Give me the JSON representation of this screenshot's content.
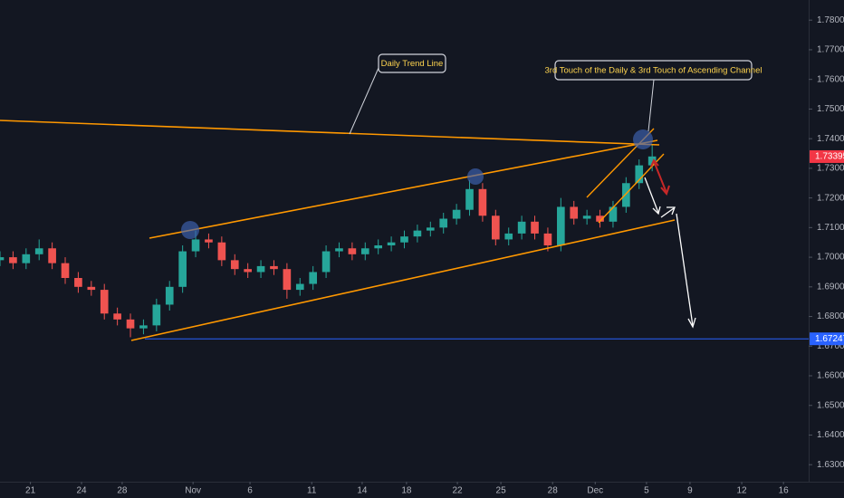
{
  "chart_data": {
    "type": "candlestick",
    "up_color": "#26a69a",
    "down_color": "#ef5350",
    "grid": false,
    "x": [
      0,
      3,
      6,
      9,
      12,
      15,
      18,
      21,
      24,
      27,
      30,
      33,
      36,
      39,
      42,
      45,
      48,
      51,
      54,
      57,
      60,
      63,
      66,
      69,
      72,
      75,
      78,
      81,
      84,
      87,
      90,
      93,
      96,
      99,
      102,
      105,
      108,
      111,
      114,
      117,
      120,
      123,
      126,
      129,
      132,
      135,
      138,
      141,
      144,
      147,
      150
    ],
    "open": [
      1.699,
      1.7,
      1.698,
      1.701,
      1.703,
      1.698,
      1.693,
      1.69,
      1.689,
      1.681,
      1.679,
      1.676,
      1.677,
      1.684,
      1.69,
      1.702,
      1.706,
      1.705,
      1.699,
      1.696,
      1.695,
      1.697,
      1.696,
      1.689,
      1.691,
      1.695,
      1.702,
      1.703,
      1.701,
      1.703,
      1.704,
      1.705,
      1.707,
      1.709,
      1.71,
      1.713,
      1.716,
      1.723,
      1.714,
      1.706,
      1.708,
      1.712,
      1.708,
      1.704,
      1.717,
      1.713,
      1.714,
      1.712,
      1.717,
      1.725,
      1.731
    ],
    "high": [
      1.702,
      1.702,
      1.703,
      1.706,
      1.705,
      1.7,
      1.695,
      1.692,
      1.691,
      1.683,
      1.681,
      1.679,
      1.686,
      1.692,
      1.704,
      1.709,
      1.708,
      1.707,
      1.701,
      1.698,
      1.699,
      1.699,
      1.698,
      1.693,
      1.697,
      1.704,
      1.705,
      1.705,
      1.705,
      1.706,
      1.707,
      1.709,
      1.711,
      1.712,
      1.715,
      1.718,
      1.726,
      1.725,
      1.716,
      1.71,
      1.714,
      1.714,
      1.71,
      1.72,
      1.719,
      1.716,
      1.716,
      1.719,
      1.727,
      1.733,
      1.738
    ],
    "low": [
      1.697,
      1.696,
      1.696,
      1.699,
      1.696,
      1.691,
      1.688,
      1.687,
      1.679,
      1.677,
      1.673,
      1.674,
      1.675,
      1.682,
      1.688,
      1.7,
      1.703,
      1.697,
      1.694,
      1.693,
      1.693,
      1.694,
      1.686,
      1.687,
      1.689,
      1.693,
      1.7,
      1.699,
      1.699,
      1.701,
      1.702,
      1.703,
      1.705,
      1.707,
      1.708,
      1.711,
      1.714,
      1.712,
      1.704,
      1.704,
      1.706,
      1.706,
      1.702,
      1.702,
      1.711,
      1.711,
      1.71,
      1.71,
      1.715,
      1.723,
      1.729
    ],
    "close": [
      1.7,
      1.698,
      1.701,
      1.703,
      1.698,
      1.693,
      1.69,
      1.689,
      1.681,
      1.679,
      1.676,
      1.677,
      1.684,
      1.69,
      1.702,
      1.706,
      1.705,
      1.699,
      1.696,
      1.695,
      1.697,
      1.696,
      1.689,
      1.691,
      1.695,
      1.702,
      1.703,
      1.701,
      1.703,
      1.704,
      1.705,
      1.707,
      1.709,
      1.71,
      1.713,
      1.716,
      1.723,
      1.714,
      1.706,
      1.708,
      1.712,
      1.708,
      1.704,
      1.717,
      1.713,
      1.714,
      1.712,
      1.717,
      1.725,
      1.731,
      1.734
    ],
    "xlim": [
      0,
      186
    ],
    "xticks": [
      {
        "value": 7,
        "label": "21"
      },
      {
        "value": 18.75,
        "label": "24"
      },
      {
        "value": 28.1,
        "label": "28"
      },
      {
        "value": 44.4,
        "label": "Nov"
      },
      {
        "value": 57.5,
        "label": "6"
      },
      {
        "value": 71.7,
        "label": "11"
      },
      {
        "value": 83.3,
        "label": "14"
      },
      {
        "value": 93.5,
        "label": "18"
      },
      {
        "value": 105.2,
        "label": "22"
      },
      {
        "value": 115.2,
        "label": "25"
      },
      {
        "value": 127.1,
        "label": "28"
      },
      {
        "value": 136.9,
        "label": "Dec"
      },
      {
        "value": 148.7,
        "label": "5"
      },
      {
        "value": 158.7,
        "label": "9"
      },
      {
        "value": 170.6,
        "label": "12"
      },
      {
        "value": 180.2,
        "label": "16"
      }
    ],
    "ylim": [
      1.62426,
      1.78679
    ],
    "yticks": [
      {
        "value": 1.78,
        "label": "1.78000"
      },
      {
        "value": 1.77,
        "label": "1.77000"
      },
      {
        "value": 1.76,
        "label": "1.76000"
      },
      {
        "value": 1.75,
        "label": "1.75000"
      },
      {
        "value": 1.74,
        "label": "1.74000"
      },
      {
        "value": 1.73,
        "label": "1.73000"
      },
      {
        "value": 1.72,
        "label": "1.72000"
      },
      {
        "value": 1.71,
        "label": "1.71000"
      },
      {
        "value": 1.7,
        "label": "1.70000"
      },
      {
        "value": 1.69,
        "label": "1.69000"
      },
      {
        "value": 1.68,
        "label": "1.68000"
      },
      {
        "value": 1.67,
        "label": "1.67000"
      },
      {
        "value": 1.66,
        "label": "1.66000"
      },
      {
        "value": 1.65,
        "label": "1.65000"
      },
      {
        "value": 1.64,
        "label": "1.64000"
      },
      {
        "value": 1.63,
        "label": "1.63000"
      }
    ],
    "price_lines": [
      {
        "value": 1.73395,
        "color": "#f23645",
        "line": false
      },
      {
        "value": 1.67247,
        "color": "#2962ff",
        "line": true
      }
    ],
    "annotations": [
      {
        "text": "Daily Trend Line"
      },
      {
        "text": "3rd Touch of the Daily & 3rd Touch of Ascending Channel"
      }
    ]
  }
}
